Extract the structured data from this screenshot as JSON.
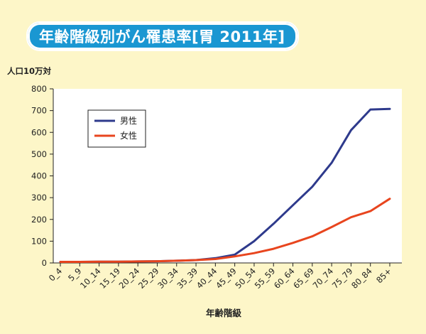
{
  "header": {
    "title": "年齢階級別がん罹患率[胃 2011年]"
  },
  "colors": {
    "title_bg": "#1a97d2",
    "background": "#fdf6c8",
    "male": "#2e3a8c",
    "female": "#e8451e"
  },
  "chart_data": {
    "type": "line",
    "title": "年齢階級別がん罹患率[胃 2011年]",
    "ylabel": "人口10万対",
    "xlabel": "年齢階級",
    "ylim": [
      0,
      800
    ],
    "yticks": [
      0,
      100,
      200,
      300,
      400,
      500,
      600,
      700,
      800
    ],
    "grid": false,
    "legend_position": "top-left",
    "categories": [
      "0_4",
      "5_9",
      "10_14",
      "15_19",
      "20_24",
      "25_29",
      "30_34",
      "35_39",
      "40_44",
      "45_49",
      "50_54",
      "55_59",
      "60_64",
      "65_69",
      "70_74",
      "75_79",
      "80_84",
      "85+"
    ],
    "series": [
      {
        "name": "男性",
        "color": "#2e3a8c",
        "values": [
          5,
          5,
          6,
          6,
          7,
          8,
          10,
          13,
          22,
          38,
          100,
          180,
          265,
          350,
          460,
          610,
          705,
          708
        ]
      },
      {
        "name": "女性",
        "color": "#e8451e",
        "values": [
          5,
          5,
          6,
          6,
          7,
          8,
          10,
          13,
          18,
          30,
          45,
          65,
          92,
          122,
          165,
          210,
          238,
          295
        ]
      }
    ]
  }
}
